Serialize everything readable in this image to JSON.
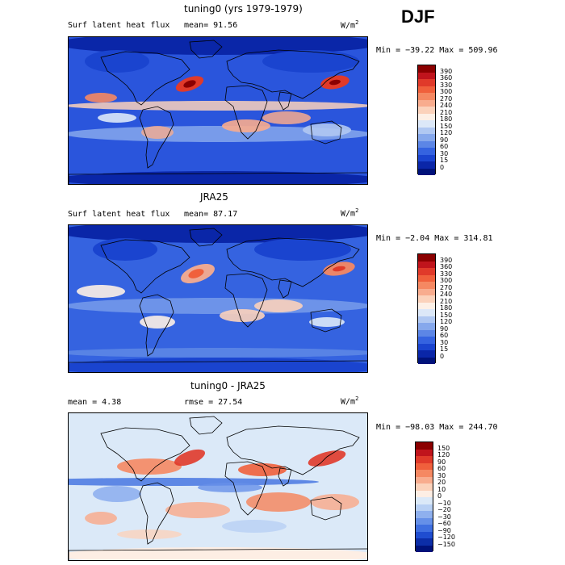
{
  "season": "DJF",
  "panels": [
    {
      "title": "tuning0 (yrs 1979-1979)",
      "left_text": "Surf latent heat flux",
      "mean_text": "mean=   91.56",
      "rmse_text": "",
      "units": "W/m",
      "units_sup": "2",
      "minmax": "Min = −39.22 Max = 509.96",
      "colorbar": {
        "labels": [
          "390",
          "360",
          "330",
          "300",
          "270",
          "240",
          "210",
          "180",
          "150",
          "120",
          "90",
          "60",
          "30",
          "15",
          "0"
        ],
        "colors": [
          "#8b0000",
          "#c0141c",
          "#e03a2a",
          "#f0603c",
          "#f58862",
          "#f8ac8e",
          "#fbd2bb",
          "#fdf0e6",
          "#dce8f8",
          "#b0c8f2",
          "#86a8ec",
          "#5c86e6",
          "#3563e0",
          "#1a44cf",
          "#0a26a8",
          "#00127a"
        ]
      }
    },
    {
      "title": "JRA25",
      "left_text": "Surf latent heat flux",
      "mean_text": "mean=   87.17",
      "rmse_text": "",
      "units": "W/m",
      "units_sup": "2",
      "minmax": "Min =  −2.04 Max = 314.81",
      "colorbar": {
        "labels": [
          "390",
          "360",
          "330",
          "300",
          "270",
          "240",
          "210",
          "180",
          "150",
          "120",
          "90",
          "60",
          "30",
          "15",
          "0"
        ],
        "colors": [
          "#8b0000",
          "#c0141c",
          "#e03a2a",
          "#f0603c",
          "#f58862",
          "#f8ac8e",
          "#fbd2bb",
          "#fdf0e6",
          "#dce8f8",
          "#b0c8f2",
          "#86a8ec",
          "#5c86e6",
          "#3563e0",
          "#1a44cf",
          "#0a26a8",
          "#00127a"
        ]
      }
    },
    {
      "title": "tuning0 - JRA25",
      "left_text": "mean =   4.38",
      "mean_text": "",
      "rmse_text": "rmse =   27.54",
      "units": "W/m",
      "units_sup": "2",
      "minmax": "Min = −98.03 Max = 244.70",
      "colorbar": {
        "labels": [
          "150",
          "120",
          "90",
          "60",
          "30",
          "20",
          "10",
          "0",
          "−10",
          "−20",
          "−30",
          "−60",
          "−90",
          "−120",
          "−150"
        ],
        "colors": [
          "#8b0000",
          "#c0141c",
          "#e03a2a",
          "#f0603c",
          "#f58862",
          "#f8ac8e",
          "#fbd2bb",
          "#fdeee4",
          "#dbe9f8",
          "#b8d0f4",
          "#8fb0ee",
          "#6690e8",
          "#3f6fe0",
          "#1f4dd0",
          "#0c2ea8",
          "#00127a"
        ]
      }
    }
  ]
}
